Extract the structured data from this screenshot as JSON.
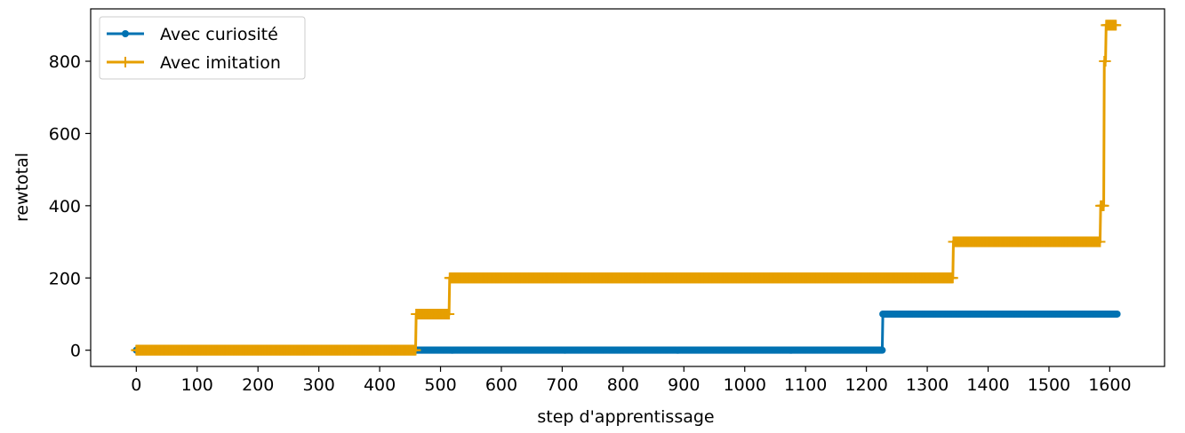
{
  "chart_data": {
    "type": "line",
    "title": "",
    "xlabel": "step d'apprentissage",
    "ylabel": "rewtotal",
    "xlim": [
      -75,
      1690
    ],
    "ylim": [
      -45,
      945
    ],
    "xticks": [
      0,
      100,
      200,
      300,
      400,
      500,
      600,
      700,
      800,
      900,
      1000,
      1100,
      1200,
      1300,
      1400,
      1500,
      1600
    ],
    "yticks": [
      0,
      200,
      400,
      600,
      800
    ],
    "grid": false,
    "legend_position": "upper left",
    "series": [
      {
        "name": "Avec curiosité",
        "color": "#0072b2",
        "marker": "circle",
        "steps": [
          {
            "x": 0,
            "y": 0
          },
          {
            "x": 1226,
            "y": 0
          },
          {
            "x": 1227,
            "y": 100
          },
          {
            "x": 1612,
            "y": 100
          }
        ]
      },
      {
        "name": "Avec imitation",
        "color": "#e69f00",
        "marker": "plus",
        "steps": [
          {
            "x": 0,
            "y": 0
          },
          {
            "x": 459,
            "y": 0
          },
          {
            "x": 460,
            "y": 100
          },
          {
            "x": 514,
            "y": 100
          },
          {
            "x": 515,
            "y": 200
          },
          {
            "x": 1342,
            "y": 200
          },
          {
            "x": 1343,
            "y": 300
          },
          {
            "x": 1584,
            "y": 300
          },
          {
            "x": 1585,
            "y": 400
          },
          {
            "x": 1590,
            "y": 400
          },
          {
            "x": 1591,
            "y": 800
          },
          {
            "x": 1593,
            "y": 800
          },
          {
            "x": 1594,
            "y": 900
          },
          {
            "x": 1610,
            "y": 900
          }
        ]
      }
    ]
  }
}
